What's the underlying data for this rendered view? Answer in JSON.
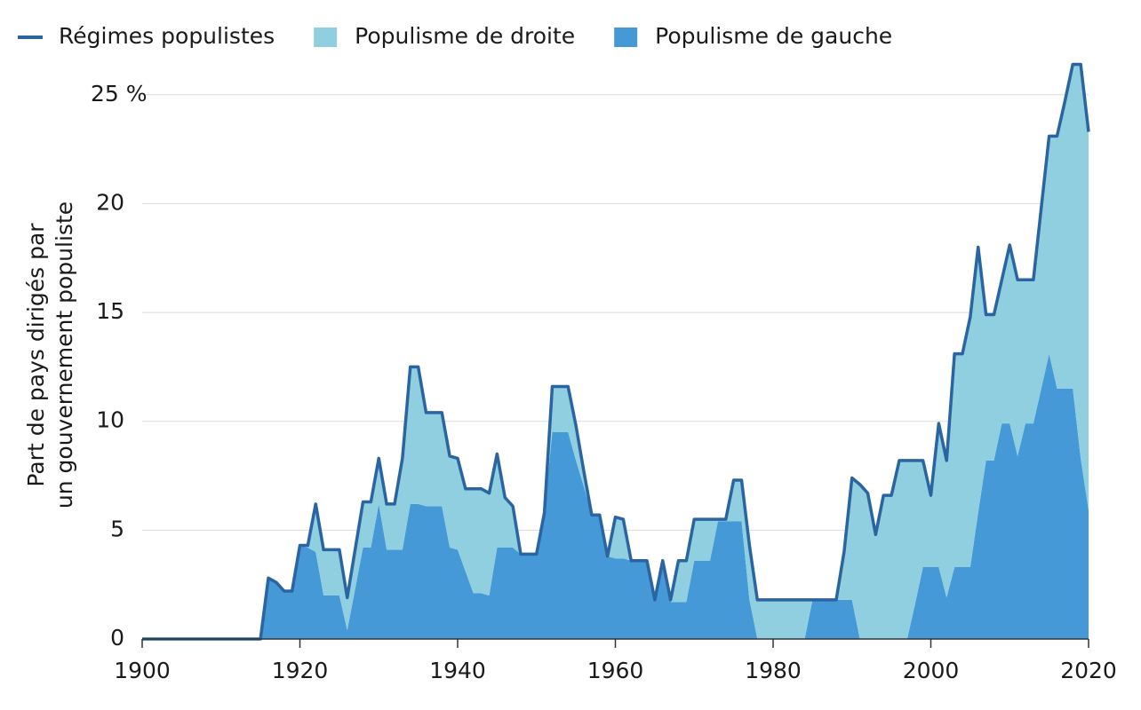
{
  "chart_data": {
    "type": "stacked_area_line",
    "ylabel": [
      "Part de pays dirigés par",
      "un gouvernement populiste"
    ],
    "x": [
      1900,
      1901,
      1902,
      1903,
      1904,
      1905,
      1906,
      1907,
      1908,
      1909,
      1910,
      1911,
      1912,
      1913,
      1914,
      1915,
      1916,
      1917,
      1918,
      1919,
      1920,
      1921,
      1922,
      1923,
      1924,
      1925,
      1926,
      1927,
      1928,
      1929,
      1930,
      1931,
      1932,
      1933,
      1934,
      1935,
      1936,
      1937,
      1938,
      1939,
      1940,
      1941,
      1942,
      1943,
      1944,
      1945,
      1946,
      1947,
      1948,
      1949,
      1950,
      1951,
      1952,
      1953,
      1954,
      1955,
      1956,
      1957,
      1958,
      1959,
      1960,
      1961,
      1962,
      1963,
      1964,
      1965,
      1966,
      1967,
      1968,
      1969,
      1970,
      1971,
      1972,
      1973,
      1974,
      1975,
      1976,
      1977,
      1978,
      1979,
      1980,
      1981,
      1982,
      1983,
      1984,
      1985,
      1986,
      1987,
      1988,
      1989,
      1990,
      1991,
      1992,
      1993,
      1994,
      1995,
      1996,
      1997,
      1998,
      1999,
      2000,
      2001,
      2002,
      2003,
      2004,
      2005,
      2006,
      2007,
      2008,
      2009,
      2010,
      2011,
      2012,
      2013,
      2014,
      2015,
      2016,
      2017,
      2018,
      2019,
      2020
    ],
    "series": [
      {
        "name": "Régimes populistes",
        "type": "line",
        "color": "#2a65a1",
        "values": [
          0,
          0,
          0,
          0,
          0,
          0,
          0,
          0,
          0,
          0,
          0,
          0,
          0,
          0,
          0,
          0,
          2.8,
          2.6,
          2.2,
          2.2,
          4.3,
          4.3,
          6.2,
          4.1,
          4.1,
          4.1,
          1.9,
          4.1,
          6.3,
          6.3,
          8.3,
          6.2,
          6.2,
          8.3,
          12.5,
          12.5,
          10.4,
          10.4,
          10.4,
          8.4,
          8.3,
          6.9,
          6.9,
          6.9,
          6.7,
          8.5,
          6.5,
          6.1,
          3.9,
          3.9,
          3.9,
          5.8,
          11.6,
          11.6,
          11.6,
          9.8,
          7.7,
          5.7,
          5.7,
          3.8,
          5.6,
          5.5,
          3.6,
          3.6,
          3.6,
          1.8,
          3.6,
          1.8,
          3.6,
          3.6,
          5.5,
          5.5,
          5.5,
          5.5,
          5.5,
          7.3,
          7.3,
          4.3,
          1.8,
          1.8,
          1.8,
          1.8,
          1.8,
          1.8,
          1.8,
          1.8,
          1.8,
          1.8,
          1.8,
          4.0,
          7.4,
          7.1,
          6.7,
          4.8,
          6.6,
          6.6,
          8.2,
          8.2,
          8.2,
          8.2,
          6.6,
          9.9,
          8.2,
          13.1,
          13.1,
          14.8,
          18.0,
          14.9,
          14.9,
          16.5,
          18.1,
          16.5,
          16.5,
          16.5,
          19.8,
          23.1,
          23.1,
          24.7,
          26.4,
          26.4,
          23.3
        ]
      },
      {
        "name": "Populisme de droite",
        "type": "area",
        "color": "#8fcfe0",
        "values": [
          0,
          0,
          0,
          0,
          0,
          0,
          0,
          0,
          0,
          0,
          0,
          0,
          0,
          0,
          0,
          0,
          0,
          0,
          0,
          0,
          0,
          0.1,
          2.2,
          2.1,
          2.1,
          2.1,
          1.5,
          1.8,
          2.1,
          2.1,
          2.1,
          2.1,
          2.1,
          4.2,
          6.3,
          6.3,
          4.3,
          4.3,
          4.3,
          4.2,
          4.2,
          3.8,
          4.8,
          4.8,
          4.7,
          4.3,
          2.3,
          1.9,
          0,
          0,
          0,
          0,
          2.1,
          2.1,
          2.1,
          1.6,
          0.7,
          0,
          0,
          0,
          1.9,
          1.8,
          0,
          0,
          0,
          0,
          0,
          0.1,
          1.9,
          1.9,
          1.9,
          1.9,
          1.9,
          0.1,
          0.1,
          1.9,
          1.9,
          2.5,
          1.8,
          1.8,
          1.8,
          1.8,
          1.8,
          1.8,
          1.8,
          0,
          0,
          0,
          0,
          2.2,
          5.6,
          7.1,
          6.7,
          4.8,
          6.6,
          6.6,
          8.2,
          8.2,
          6.6,
          4.9,
          3.3,
          6.6,
          6.3,
          9.8,
          9.8,
          11.5,
          12.2,
          6.7,
          6.7,
          6.6,
          8.2,
          8.1,
          6.6,
          6.6,
          8.3,
          10.0,
          11.6,
          13.2,
          14.9,
          18.1,
          17.4
        ]
      },
      {
        "name": "Populisme de gauche",
        "type": "area",
        "color": "#4499d6",
        "values": [
          0,
          0,
          0,
          0,
          0,
          0,
          0,
          0,
          0,
          0,
          0,
          0,
          0,
          0,
          0,
          0,
          2.8,
          2.6,
          2.2,
          2.2,
          4.3,
          4.2,
          4.0,
          2.0,
          2.0,
          2.0,
          0.4,
          2.3,
          4.2,
          4.2,
          6.2,
          4.1,
          4.1,
          4.1,
          6.2,
          6.2,
          6.1,
          6.1,
          6.1,
          4.2,
          4.1,
          3.1,
          2.1,
          2.1,
          2.0,
          4.2,
          4.2,
          4.2,
          3.9,
          3.9,
          3.9,
          5.8,
          9.5,
          9.5,
          9.5,
          8.2,
          7.0,
          5.7,
          5.7,
          3.8,
          3.7,
          3.7,
          3.6,
          3.6,
          3.6,
          1.8,
          3.6,
          1.7,
          1.7,
          1.7,
          3.6,
          3.6,
          3.6,
          5.4,
          5.4,
          5.4,
          5.4,
          1.8,
          0,
          0,
          0,
          0,
          0,
          0,
          0,
          1.8,
          1.8,
          1.8,
          1.8,
          1.8,
          1.8,
          0,
          0,
          0,
          0,
          0,
          0,
          0,
          1.6,
          3.3,
          3.3,
          3.3,
          1.9,
          3.3,
          3.3,
          3.3,
          5.8,
          8.2,
          8.2,
          9.9,
          9.9,
          8.4,
          9.9,
          9.9,
          11.5,
          13.1,
          11.5,
          11.5,
          11.5,
          8.3,
          5.9
        ]
      }
    ],
    "xlim": [
      1900,
      2020
    ],
    "xticks": [
      1900,
      1920,
      1940,
      1960,
      1980,
      2000,
      2020
    ],
    "ylim": [
      0,
      26.5
    ],
    "yticks": [
      0,
      5,
      10,
      15,
      20,
      {
        "value": 25,
        "label": "25 %"
      }
    ],
    "grid": true,
    "legend": "top"
  }
}
